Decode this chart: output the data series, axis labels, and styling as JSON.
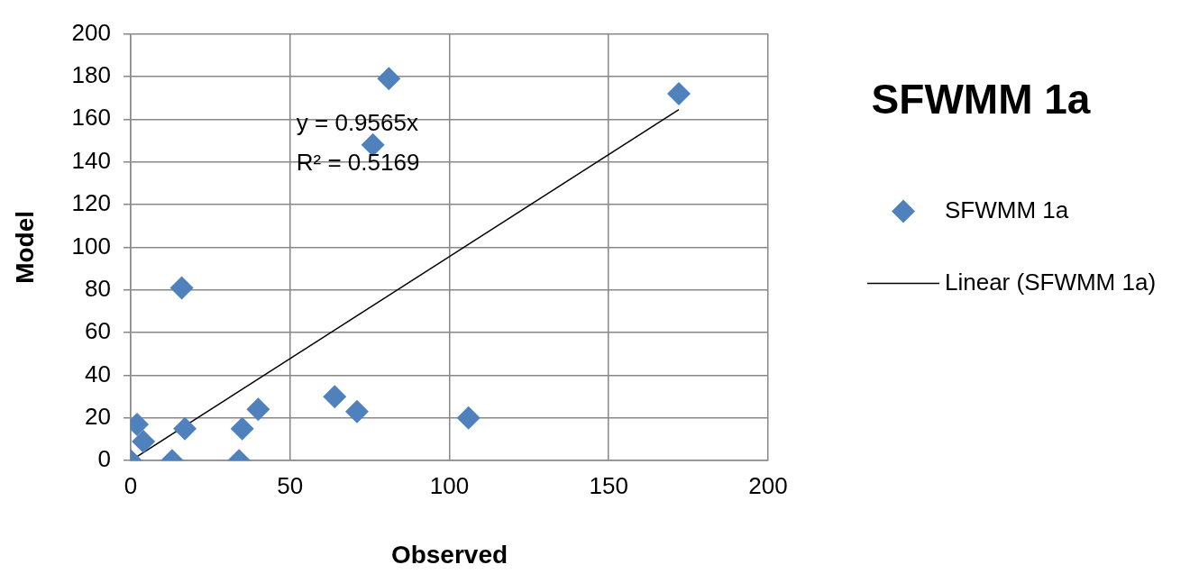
{
  "chart_data": {
    "type": "scatter",
    "title": "SFWMM 1a",
    "xlabel": "Observed",
    "ylabel": "Model",
    "xlim": [
      0,
      200
    ],
    "xticks": [
      0,
      50,
      100,
      150,
      200
    ],
    "ylim": [
      0,
      200
    ],
    "yticks": [
      0,
      20,
      40,
      60,
      80,
      100,
      120,
      140,
      160,
      180,
      200
    ],
    "grid": true,
    "legend": "right",
    "marker": "diamond",
    "series": [
      {
        "name": "SFWMM 1a",
        "color": "#4f81bd",
        "x": [
          0,
          2,
          4,
          13,
          17,
          34,
          35,
          40,
          64,
          71,
          106,
          16,
          76,
          81,
          172
        ],
        "values": [
          0,
          17,
          9,
          0,
          15,
          0,
          15,
          24,
          30,
          23,
          20,
          81,
          148,
          179,
          172
        ]
      },
      {
        "name": "Linear (SFWMM 1a)",
        "type": "line",
        "color": "#000000",
        "marker": "none",
        "x": [
          0,
          172
        ],
        "values": [
          0,
          164.5
        ]
      }
    ],
    "annotations": [
      "y = 0.9565x",
      "R² = 0.5169"
    ]
  }
}
